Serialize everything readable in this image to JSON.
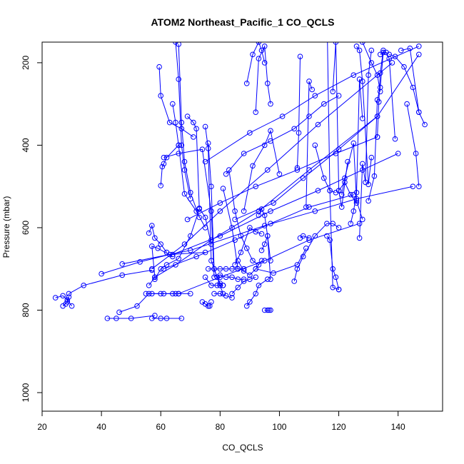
{
  "chart_data": {
    "type": "line",
    "title": "ATOM2 Northeast_Pacific_1 CO_QCLS",
    "xlabel": "CO_QCLS",
    "ylabel": "Pressure (mbar)",
    "xlim": [
      20,
      155
    ],
    "ylim": [
      1045,
      150
    ],
    "y_reversed": true,
    "xticks": [
      20,
      40,
      60,
      80,
      100,
      120,
      140
    ],
    "yticks": [
      200,
      400,
      600,
      800,
      1000
    ],
    "marker": "open-circle",
    "color": "#0000ff",
    "series": [
      {
        "x": [
          24.5,
          27,
          28.5,
          30
        ],
        "y": [
          770,
          765,
          775,
          790
        ]
      },
      {
        "x": [
          27,
          28.5,
          29,
          28
        ],
        "y": [
          790,
          780,
          768,
          785
        ]
      },
      {
        "x": [
          29,
          34,
          47,
          57
        ],
        "y": [
          760,
          740,
          715,
          703
        ]
      },
      {
        "x": [
          40,
          53,
          63,
          75
        ],
        "y": [
          712,
          683,
          665,
          660
        ]
      },
      {
        "x": [
          42,
          45,
          50,
          58
        ],
        "y": [
          820,
          820,
          820,
          813
        ]
      },
      {
        "x": [
          46,
          52,
          56,
          61,
          66
        ],
        "y": [
          805,
          790,
          760,
          760,
          760
        ]
      },
      {
        "x": [
          57,
          60,
          62,
          67
        ],
        "y": [
          820,
          820,
          820,
          820
        ]
      },
      {
        "x": [
          55,
          57,
          60,
          64,
          65,
          70
        ],
        "y": [
          760,
          760,
          760,
          760,
          760,
          760
        ]
      },
      {
        "x": [
          56,
          58,
          57,
          59,
          64
        ],
        "y": [
          740,
          720,
          645,
          650,
          670
        ]
      },
      {
        "x": [
          56,
          57,
          58,
          60,
          62
        ],
        "y": [
          613,
          595,
          625,
          640,
          660
        ]
      },
      {
        "x": [
          58,
          60,
          62,
          66,
          70,
          73
        ],
        "y": [
          725,
          700,
          690,
          675,
          620,
          555
        ]
      },
      {
        "x": [
          60,
          60.5,
          61,
          62,
          66
        ],
        "y": [
          498,
          452,
          445,
          430,
          400
        ]
      },
      {
        "x": [
          59.5,
          60,
          63,
          67,
          71
        ],
        "y": [
          210,
          280,
          345,
          360,
          380
        ]
      },
      {
        "x": [
          65,
          66,
          67,
          68,
          70
        ],
        "y": [
          150,
          240,
          400,
          460,
          530
        ]
      },
      {
        "x": [
          64,
          65,
          66,
          68,
          72,
          75
        ],
        "y": [
          300,
          345,
          400,
          518,
          560,
          600
        ]
      },
      {
        "x": [
          66,
          67,
          68,
          70,
          73
        ],
        "y": [
          155,
          345,
          440,
          515,
          575
        ]
      },
      {
        "x": [
          69,
          71,
          72,
          73,
          75,
          77
        ],
        "y": [
          330,
          345,
          360,
          553,
          575,
          640
        ]
      },
      {
        "x": [
          61,
          66,
          74,
          77,
          78
        ],
        "y": [
          430,
          420,
          410,
          560,
          720
        ]
      },
      {
        "x": [
          75,
          76,
          77,
          78,
          79,
          80,
          81
        ],
        "y": [
          355,
          408,
          680,
          700,
          720,
          740,
          760
        ]
      },
      {
        "x": [
          74,
          75,
          76,
          76.5,
          77
        ],
        "y": [
          780,
          785,
          790,
          790,
          780
        ]
      },
      {
        "x": [
          76,
          77,
          78,
          79,
          80,
          81
        ],
        "y": [
          395,
          500,
          700,
          720,
          735,
          740
        ]
      },
      {
        "x": [
          75,
          77,
          79,
          80,
          81
        ],
        "y": [
          720,
          740,
          740,
          740,
          740
        ]
      },
      {
        "x": [
          78,
          80,
          82,
          84
        ],
        "y": [
          760,
          760,
          765,
          770
        ]
      },
      {
        "x": [
          76,
          78,
          80,
          82,
          84,
          86,
          88
        ],
        "y": [
          700,
          700,
          700,
          700,
          700,
          700,
          700
        ]
      },
      {
        "x": [
          80,
          82,
          84,
          86,
          88
        ],
        "y": [
          715,
          720,
          720,
          725,
          725
        ]
      },
      {
        "x": [
          81,
          84,
          86,
          88
        ],
        "y": [
          505,
          600,
          700,
          700
        ]
      },
      {
        "x": [
          83,
          85,
          87,
          89,
          91,
          93
        ],
        "y": [
          460,
          560,
          620,
          650,
          680,
          690
        ]
      },
      {
        "x": [
          84,
          86,
          88,
          90,
          92
        ],
        "y": [
          760,
          745,
          730,
          725,
          720
        ]
      },
      {
        "x": [
          85,
          87,
          90,
          92,
          94
        ],
        "y": [
          690,
          660,
          600,
          610,
          615
        ]
      },
      {
        "x": [
          86,
          88,
          90,
          92,
          94
        ],
        "y": [
          680,
          705,
          715,
          700,
          680
        ]
      },
      {
        "x": [
          89,
          90,
          92,
          93,
          96
        ],
        "y": [
          790,
          780,
          760,
          740,
          725
        ]
      },
      {
        "x": [
          89,
          91,
          93,
          94,
          95
        ],
        "y": [
          250,
          180,
          150,
          170,
          200
        ]
      },
      {
        "x": [
          92,
          93,
          95,
          96,
          97
        ],
        "y": [
          320,
          190,
          160,
          250,
          300
        ]
      },
      {
        "x": [
          93,
          94,
          95,
          96,
          97
        ],
        "y": [
          570,
          555,
          570,
          620,
          680
        ]
      },
      {
        "x": [
          95,
          96,
          96.5,
          97
        ],
        "y": [
          800,
          800,
          800,
          800
        ]
      },
      {
        "x": [
          88,
          91,
          95,
          97,
          100
        ],
        "y": [
          560,
          450,
          400,
          365,
          470
        ]
      },
      {
        "x": [
          94,
          95,
          96,
          97
        ],
        "y": [
          655,
          640,
          620,
          725
        ]
      },
      {
        "x": [
          82,
          88,
          97,
          105,
          110,
          115,
          120
        ],
        "y": [
          470,
          420,
          390,
          360,
          330,
          300,
          280
        ]
      },
      {
        "x": [
          92,
          98,
          106,
          109
        ],
        "y": [
          700,
          710,
          690,
          650
        ]
      },
      {
        "x": [
          105,
          106,
          108,
          112,
          116,
          118,
          120
        ],
        "y": [
          730,
          700,
          670,
          620,
          590,
          590,
          600
        ]
      },
      {
        "x": [
          106,
          106.5,
          107
        ],
        "y": [
          455,
          370,
          185
        ]
      },
      {
        "x": [
          107,
          108,
          110
        ],
        "y": [
          625,
          620,
          625
        ]
      },
      {
        "x": [
          109,
          110,
          111
        ],
        "y": [
          550,
          245,
          265
        ]
      },
      {
        "x": [
          109,
          112,
          116,
          117,
          118,
          120
        ],
        "y": [
          65,
          80,
          60,
          510,
          745,
          750
        ]
      },
      {
        "x": [
          112,
          115,
          117,
          119
        ],
        "y": [
          400,
          480,
          510,
          515
        ]
      },
      {
        "x": [
          116,
          117,
          118,
          119,
          120
        ],
        "y": [
          620,
          630,
          700,
          720,
          750
        ]
      },
      {
        "x": [
          118,
          119,
          120,
          121,
          123
        ],
        "y": [
          270,
          150,
          510,
          550,
          440
        ]
      },
      {
        "x": [
          120,
          122,
          124,
          126
        ],
        "y": [
          510,
          490,
          520,
          540
        ]
      },
      {
        "x": [
          121,
          122,
          125,
          126,
          128
        ],
        "y": [
          520,
          480,
          395,
          535,
          580
        ]
      },
      {
        "x": [
          124,
          125,
          126,
          127,
          128
        ],
        "y": [
          590,
          560,
          515,
          240,
          335
        ]
      },
      {
        "x": [
          127,
          128,
          129,
          130,
          131
        ],
        "y": [
          625,
          445,
          490,
          230,
          170
        ]
      },
      {
        "x": [
          126,
          127,
          128,
          130,
          131
        ],
        "y": [
          160,
          170,
          245,
          495,
          430
        ]
      },
      {
        "x": [
          130,
          132,
          133,
          134,
          135
        ],
        "y": [
          535,
          475,
          290,
          260,
          175
        ]
      },
      {
        "x": [
          133,
          133.5,
          134,
          135
        ],
        "y": [
          380,
          295,
          225,
          170
        ]
      },
      {
        "x": [
          128,
          131,
          133,
          134
        ],
        "y": [
          150,
          200,
          230,
          270
        ]
      },
      {
        "x": [
          134,
          136,
          137,
          139
        ],
        "y": [
          180,
          175,
          190,
          385
        ]
      },
      {
        "x": [
          137,
          139,
          142,
          145,
          147
        ],
        "y": [
          180,
          185,
          210,
          260,
          320
        ]
      },
      {
        "x": [
          141,
          144,
          147,
          149
        ],
        "y": [
          170,
          165,
          320,
          350
        ]
      },
      {
        "x": [
          143,
          146,
          147
        ],
        "y": [
          300,
          420,
          500
        ]
      },
      {
        "x": [
          47,
          70,
          95,
          112,
          126,
          145
        ],
        "y": [
          688,
          655,
          595,
          560,
          530,
          500
        ]
      },
      {
        "x": [
          64,
          80,
          97,
          113,
          128,
          140
        ],
        "y": [
          665,
          620,
          560,
          510,
          460,
          420
        ]
      },
      {
        "x": [
          66,
          80,
          95,
          110,
          127
        ],
        "y": [
          760,
          720,
          680,
          630,
          590
        ]
      },
      {
        "x": [
          61,
          72,
          85,
          97,
          110,
          125
        ],
        "y": [
          700,
          670,
          630,
          590,
          550,
          520
        ]
      },
      {
        "x": [
          69,
          80,
          92,
          106,
          119,
          133
        ],
        "y": [
          580,
          540,
          500,
          460,
          420,
          380
        ]
      },
      {
        "x": [
          58,
          65,
          77,
          93,
          110,
          133
        ],
        "y": [
          720,
          690,
          630,
          560,
          460,
          330
        ]
      },
      {
        "x": [
          57,
          68,
          80,
          96,
          113,
          138
        ],
        "y": [
          700,
          640,
          560,
          460,
          350,
          200
        ]
      },
      {
        "x": [
          85,
          98,
          108,
          120,
          133,
          147
        ],
        "y": [
          580,
          540,
          480,
          410,
          330,
          180
        ]
      },
      {
        "x": [
          75,
          90,
          101,
          112,
          125,
          147
        ],
        "y": [
          440,
          370,
          330,
          280,
          230,
          160
        ]
      }
    ]
  }
}
